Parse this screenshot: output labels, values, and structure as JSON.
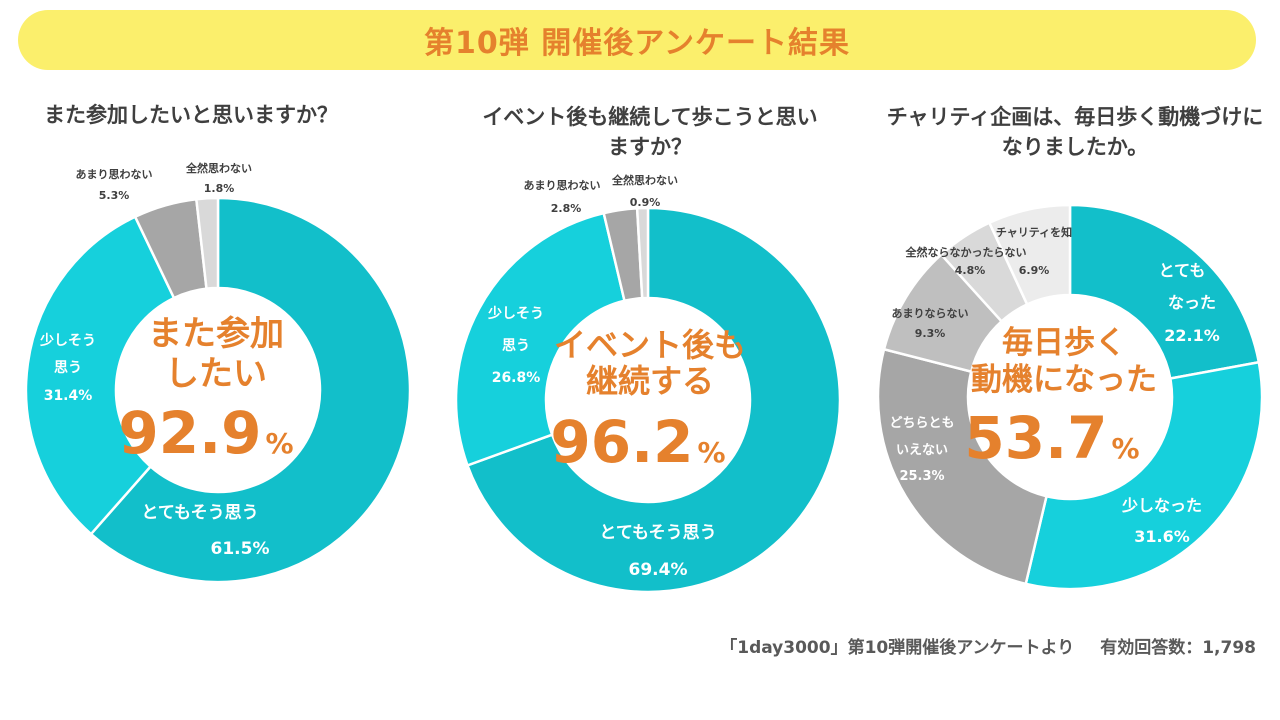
{
  "header": {
    "title": "第10弾 開催後アンケート結果"
  },
  "colors": {
    "banner": "#fbef6c",
    "accent": "#e5812d",
    "teal_dark": "#12bfca",
    "teal_light": "#16d0dc",
    "gray_dark": "#a6a6a6",
    "gray_mid": "#bfbfbf",
    "gray_light": "#d9d9d9",
    "gray_lighter": "#ececec"
  },
  "chart_data": [
    {
      "type": "pie",
      "title": "また参加したいと思いますか？",
      "center": {
        "line1": "また参加",
        "line2": "したい",
        "value": "92.9",
        "unit": "%"
      },
      "slices": [
        {
          "label": "とてもそう思う",
          "value": 61.5,
          "value_text": "61.5%",
          "color": "#12bfca"
        },
        {
          "label": "少しそう思う",
          "value": 31.4,
          "value_text": "31.4%",
          "color": "#16d0dc"
        },
        {
          "label": "あまり思わない",
          "value": 5.3,
          "value_text": "5.3%",
          "color": "#a6a6a6"
        },
        {
          "label": "全然思わない",
          "value": 1.8,
          "value_text": "1.8%",
          "color": "#d9d9d9"
        }
      ]
    },
    {
      "type": "pie",
      "title": "イベント後も継続して歩こうと思いますか？",
      "center": {
        "line1": "イベント後も",
        "line2": "継続する",
        "value": "96.2",
        "unit": "%"
      },
      "slices": [
        {
          "label": "とてもそう思う",
          "value": 69.4,
          "value_text": "69.4%",
          "color": "#12bfca"
        },
        {
          "label": "少しそう思う",
          "value": 26.8,
          "value_text": "26.8%",
          "color": "#16d0dc"
        },
        {
          "label": "あまり思わない",
          "value": 2.8,
          "value_text": "2.8%",
          "color": "#a6a6a6"
        },
        {
          "label": "全然思わない",
          "value": 0.9,
          "value_text": "0.9%",
          "color": "#d9d9d9"
        }
      ]
    },
    {
      "type": "pie",
      "title": "チャリティ企画は、毎日歩く動機づけになりましたか。",
      "center": {
        "line1": "毎日歩く",
        "line2": "動機になった",
        "value": "53.7",
        "unit": "%"
      },
      "slices": [
        {
          "label": "とてもなった",
          "value": 22.1,
          "value_text": "22.1%",
          "color": "#12bfca"
        },
        {
          "label": "少しなった",
          "value": 31.6,
          "value_text": "31.6%",
          "color": "#16d0dc"
        },
        {
          "label": "どちらともいえない",
          "value": 25.3,
          "value_text": "25.3%",
          "color": "#a6a6a6"
        },
        {
          "label": "あまりならない",
          "value": 9.3,
          "value_text": "9.3%",
          "color": "#bfbfbf"
        },
        {
          "label": "全然ならなかったらない",
          "value": 4.8,
          "value_text": "4.8%",
          "color": "#d9d9d9"
        },
        {
          "label": "チャリティを知",
          "value": 6.9,
          "value_text": "6.9%",
          "color": "#ececec"
        }
      ]
    }
  ],
  "footer": {
    "source": "「1day3000」第10弾開催後アンケートより",
    "respondents": "有効回答数：1,798"
  }
}
